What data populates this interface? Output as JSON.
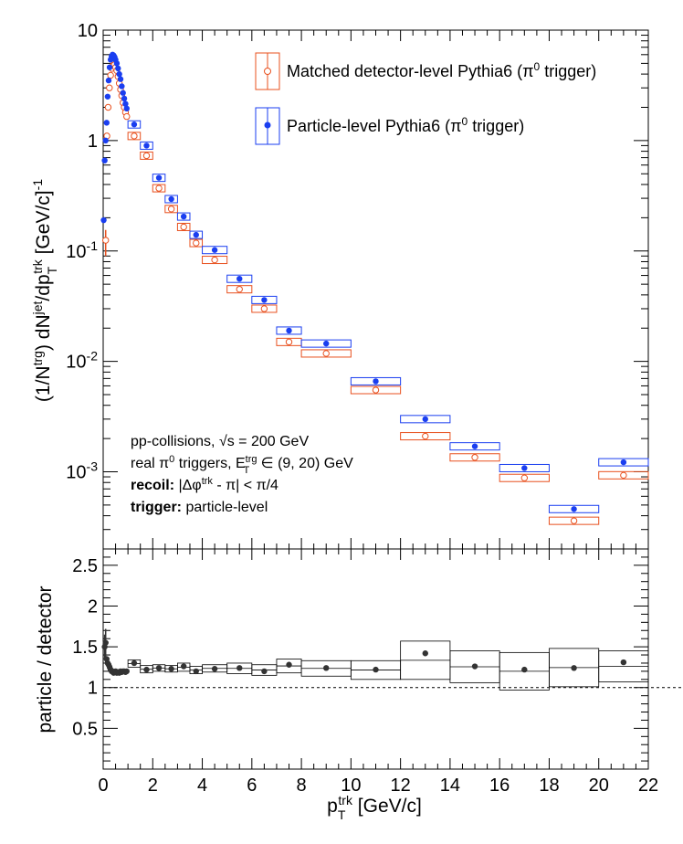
{
  "chart_data": [
    {
      "type": "scatter",
      "panel": "top",
      "yscale": "log",
      "xlim": [
        0,
        22
      ],
      "ylim": [
        0.0002,
        10
      ],
      "y_ticks": [
        0.001,
        0.01,
        0.1,
        1,
        10
      ],
      "y_tick_labels": [
        {
          "base": "10",
          "exp": "-3"
        },
        {
          "base": "10",
          "exp": "-2"
        },
        {
          "base": "10",
          "exp": "-1"
        },
        {
          "base": "1",
          "exp": ""
        },
        {
          "base": "10",
          "exp": ""
        }
      ],
      "ylabel": {
        "p1": "(1/N",
        "s1": "trg",
        "p2": ") dN",
        "s2": "jet",
        "p3": "/dp",
        "sub": "T",
        "s3": "trk",
        "p4": " [GeV/c]",
        "s4": "-1"
      },
      "legend_position": "top-right",
      "legend": [
        {
          "prefix": "Matched detector-level Pythia6 (π",
          "sup": "0",
          "suffix": " trigger)",
          "series": "detector"
        },
        {
          "prefix": "Particle-level Pythia6 (π",
          "sup": "0",
          "suffix": " trigger)",
          "series": "particle"
        }
      ],
      "annotations": {
        "line1_prefix": "pp-collisions, ",
        "line1_sqrt": "√s",
        "line1_suffix": " = 200 GeV",
        "line2_prefix": "real π",
        "line2_sup0": "0",
        "line2_mid": " triggers, E",
        "line2_sup": "trg",
        "line2_sub": "T",
        "line2_suffix": " ∈ (9, 20) GeV",
        "line3_bold": "recoil:",
        "line3_prefix": " |Δφ",
        "line3_sup": "trk",
        "line3_suffix": " - π| < π/4",
        "line4_bold": "trigger:",
        "line4_text": " particle-level"
      },
      "series": [
        {
          "name": "detector",
          "color": "#e8501e",
          "marker": "open-circle",
          "points": [
            {
              "x": 0.1,
              "y": 0.125,
              "ylo": 0.09,
              "yhi": 0.155
            },
            {
              "x": 0.15,
              "y": 1.1
            },
            {
              "x": 0.2,
              "y": 2.0
            },
            {
              "x": 0.25,
              "y": 3.0
            },
            {
              "x": 0.3,
              "y": 3.9
            },
            {
              "x": 0.35,
              "y": 4.5
            },
            {
              "x": 0.4,
              "y": 4.8
            },
            {
              "x": 0.45,
              "y": 4.85
            },
            {
              "x": 0.5,
              "y": 4.6
            },
            {
              "x": 0.55,
              "y": 4.3
            },
            {
              "x": 0.6,
              "y": 3.8
            },
            {
              "x": 0.65,
              "y": 3.3
            },
            {
              "x": 0.7,
              "y": 2.9
            },
            {
              "x": 0.75,
              "y": 2.55
            },
            {
              "x": 0.8,
              "y": 2.2
            },
            {
              "x": 0.85,
              "y": 2.0
            },
            {
              "x": 0.9,
              "y": 1.8
            },
            {
              "x": 0.95,
              "y": 1.65
            },
            {
              "x": 1.25,
              "y": 1.1,
              "xlo": 1.0,
              "xhi": 1.5
            },
            {
              "x": 1.75,
              "y": 0.73,
              "xlo": 1.5,
              "xhi": 2.0
            },
            {
              "x": 2.25,
              "y": 0.37,
              "xlo": 2.0,
              "xhi": 2.5
            },
            {
              "x": 2.75,
              "y": 0.24,
              "xlo": 2.5,
              "xhi": 3.0
            },
            {
              "x": 3.25,
              "y": 0.165,
              "xlo": 3.0,
              "xhi": 3.5
            },
            {
              "x": 3.75,
              "y": 0.118,
              "xlo": 3.5,
              "xhi": 4.0
            },
            {
              "x": 4.5,
              "y": 0.083,
              "xlo": 4.0,
              "xhi": 5.0
            },
            {
              "x": 5.5,
              "y": 0.045,
              "xlo": 5.0,
              "xhi": 6.0
            },
            {
              "x": 6.5,
              "y": 0.03,
              "xlo": 6.0,
              "xhi": 7.0
            },
            {
              "x": 7.5,
              "y": 0.015,
              "xlo": 7.0,
              "xhi": 8.0
            },
            {
              "x": 9.0,
              "y": 0.0118,
              "xlo": 8.0,
              "xhi": 10.0
            },
            {
              "x": 11.0,
              "y": 0.0055,
              "xlo": 10.0,
              "xhi": 12.0
            },
            {
              "x": 13.0,
              "y": 0.0021,
              "xlo": 12.0,
              "xhi": 14.0
            },
            {
              "x": 15.0,
              "y": 0.00135,
              "xlo": 14.0,
              "xhi": 16.0
            },
            {
              "x": 17.0,
              "y": 0.00088,
              "xlo": 16.0,
              "xhi": 18.0
            },
            {
              "x": 19.0,
              "y": 0.00036,
              "xlo": 18.0,
              "xhi": 20.0
            },
            {
              "x": 21.0,
              "y": 0.00093,
              "xlo": 20.0,
              "xhi": 22.0
            }
          ]
        },
        {
          "name": "particle",
          "color": "#1a3ef0",
          "marker": "filled-circle",
          "points": [
            {
              "x": 0.02,
              "y": 0.19
            },
            {
              "x": 0.06,
              "y": 0.66
            },
            {
              "x": 0.1,
              "y": 1.0
            },
            {
              "x": 0.14,
              "y": 1.45
            },
            {
              "x": 0.18,
              "y": 2.5
            },
            {
              "x": 0.22,
              "y": 3.5
            },
            {
              "x": 0.26,
              "y": 4.6
            },
            {
              "x": 0.3,
              "y": 5.4
            },
            {
              "x": 0.34,
              "y": 5.8
            },
            {
              "x": 0.38,
              "y": 6.0
            },
            {
              "x": 0.42,
              "y": 5.9
            },
            {
              "x": 0.46,
              "y": 5.7
            },
            {
              "x": 0.5,
              "y": 5.4
            },
            {
              "x": 0.55,
              "y": 5.0
            },
            {
              "x": 0.6,
              "y": 4.5
            },
            {
              "x": 0.65,
              "y": 4.0
            },
            {
              "x": 0.7,
              "y": 3.6
            },
            {
              "x": 0.75,
              "y": 3.1
            },
            {
              "x": 0.8,
              "y": 2.7
            },
            {
              "x": 0.85,
              "y": 2.4
            },
            {
              "x": 0.9,
              "y": 2.15
            },
            {
              "x": 0.95,
              "y": 1.95
            },
            {
              "x": 1.25,
              "y": 1.4,
              "xlo": 1.0,
              "xhi": 1.5
            },
            {
              "x": 1.75,
              "y": 0.9,
              "xlo": 1.5,
              "xhi": 2.0
            },
            {
              "x": 2.25,
              "y": 0.46,
              "xlo": 2.0,
              "xhi": 2.5
            },
            {
              "x": 2.75,
              "y": 0.295,
              "xlo": 2.5,
              "xhi": 3.0
            },
            {
              "x": 3.25,
              "y": 0.205,
              "xlo": 3.0,
              "xhi": 3.5
            },
            {
              "x": 3.75,
              "y": 0.14,
              "xlo": 3.5,
              "xhi": 4.0
            },
            {
              "x": 4.5,
              "y": 0.102,
              "xlo": 4.0,
              "xhi": 5.0
            },
            {
              "x": 5.5,
              "y": 0.056,
              "xlo": 5.0,
              "xhi": 6.0
            },
            {
              "x": 6.5,
              "y": 0.036,
              "xlo": 6.0,
              "xhi": 7.0
            },
            {
              "x": 7.5,
              "y": 0.019,
              "xlo": 7.0,
              "xhi": 8.0
            },
            {
              "x": 9.0,
              "y": 0.0145,
              "xlo": 8.0,
              "xhi": 10.0
            },
            {
              "x": 11.0,
              "y": 0.0066,
              "xlo": 10.0,
              "xhi": 12.0
            },
            {
              "x": 13.0,
              "y": 0.003,
              "xlo": 12.0,
              "xhi": 14.0
            },
            {
              "x": 15.0,
              "y": 0.0017,
              "xlo": 14.0,
              "xhi": 16.0
            },
            {
              "x": 17.0,
              "y": 0.00108,
              "xlo": 16.0,
              "xhi": 18.0
            },
            {
              "x": 19.0,
              "y": 0.00046,
              "xlo": 18.0,
              "xhi": 20.0
            },
            {
              "x": 21.0,
              "y": 0.00122,
              "xlo": 20.0,
              "xhi": 22.0
            }
          ]
        }
      ]
    },
    {
      "type": "scatter",
      "panel": "bottom",
      "xlim": [
        0,
        22
      ],
      "ylim": [
        0,
        2.7
      ],
      "x_ticks": [
        0,
        2,
        4,
        6,
        8,
        10,
        12,
        14,
        16,
        18,
        20,
        22
      ],
      "y_ticks": [
        0.5,
        1,
        1.5,
        2,
        2.5
      ],
      "y_tick_labels": [
        "0.5",
        "1",
        "1.5",
        "2",
        "2.5"
      ],
      "x_tick_labels": [
        "0",
        "2",
        "4",
        "6",
        "8",
        "10",
        "12",
        "14",
        "16",
        "18",
        "20",
        "22"
      ],
      "ylabel": "particle / detector",
      "xlabel": {
        "p1": "p",
        "sub": "T",
        "sup": "trk",
        "p2": " [GeV/c]"
      },
      "reference_line": 1,
      "series": [
        {
          "name": "ratio",
          "color": "#333333",
          "marker": "filled-circle",
          "points": [
            {
              "x": 0.06,
              "y": 1.5,
              "ylo": 1.35,
              "yhi": 1.65
            },
            {
              "x": 0.1,
              "y": 1.55,
              "ylo": 1.3,
              "yhi": 1.72
            },
            {
              "x": 0.14,
              "y": 1.35
            },
            {
              "x": 0.18,
              "y": 1.3
            },
            {
              "x": 0.22,
              "y": 1.28
            },
            {
              "x": 0.26,
              "y": 1.25
            },
            {
              "x": 0.3,
              "y": 1.22
            },
            {
              "x": 0.34,
              "y": 1.2
            },
            {
              "x": 0.38,
              "y": 1.2
            },
            {
              "x": 0.42,
              "y": 1.18
            },
            {
              "x": 0.46,
              "y": 1.19
            },
            {
              "x": 0.5,
              "y": 1.2
            },
            {
              "x": 0.55,
              "y": 1.18
            },
            {
              "x": 0.6,
              "y": 1.19
            },
            {
              "x": 0.65,
              "y": 1.18
            },
            {
              "x": 0.7,
              "y": 1.2
            },
            {
              "x": 0.75,
              "y": 1.19
            },
            {
              "x": 0.8,
              "y": 1.2
            },
            {
              "x": 0.85,
              "y": 1.2
            },
            {
              "x": 0.9,
              "y": 1.19
            },
            {
              "x": 0.95,
              "y": 1.2
            },
            {
              "x": 1.25,
              "y": 1.3,
              "xlo": 1.0,
              "xhi": 1.5,
              "blo": 1.25,
              "bhi": 1.34
            },
            {
              "x": 1.75,
              "y": 1.22,
              "xlo": 1.5,
              "xhi": 2.0,
              "blo": 1.18,
              "bhi": 1.27
            },
            {
              "x": 2.25,
              "y": 1.24,
              "xlo": 2.0,
              "xhi": 2.5,
              "blo": 1.2,
              "bhi": 1.28
            },
            {
              "x": 2.75,
              "y": 1.23,
              "xlo": 2.5,
              "xhi": 3.0,
              "blo": 1.19,
              "bhi": 1.27
            },
            {
              "x": 3.25,
              "y": 1.26,
              "xlo": 3.0,
              "xhi": 3.5,
              "blo": 1.2,
              "bhi": 1.3
            },
            {
              "x": 3.75,
              "y": 1.2,
              "xlo": 3.5,
              "xhi": 4.0,
              "blo": 1.17,
              "bhi": 1.26
            },
            {
              "x": 4.5,
              "y": 1.23,
              "xlo": 4.0,
              "xhi": 5.0,
              "blo": 1.19,
              "bhi": 1.28
            },
            {
              "x": 5.5,
              "y": 1.24,
              "xlo": 5.0,
              "xhi": 6.0,
              "blo": 1.17,
              "bhi": 1.3
            },
            {
              "x": 6.5,
              "y": 1.2,
              "xlo": 6.0,
              "xhi": 7.0,
              "blo": 1.15,
              "bhi": 1.28
            },
            {
              "x": 7.5,
              "y": 1.28,
              "xlo": 7.0,
              "xhi": 8.0,
              "blo": 1.18,
              "bhi": 1.35
            },
            {
              "x": 9.0,
              "y": 1.24,
              "xlo": 8.0,
              "xhi": 10.0,
              "blo": 1.14,
              "bhi": 1.33
            },
            {
              "x": 11.0,
              "y": 1.22,
              "xlo": 10.0,
              "xhi": 12.0,
              "blo": 1.1,
              "bhi": 1.33
            },
            {
              "x": 13.0,
              "y": 1.42,
              "xlo": 12.0,
              "xhi": 14.0,
              "blo": 1.1,
              "bhi": 1.57
            },
            {
              "x": 15.0,
              "y": 1.26,
              "xlo": 14.0,
              "xhi": 16.0,
              "blo": 1.06,
              "bhi": 1.45
            },
            {
              "x": 17.0,
              "y": 1.22,
              "xlo": 16.0,
              "xhi": 18.0,
              "blo": 0.97,
              "bhi": 1.43
            },
            {
              "x": 19.0,
              "y": 1.24,
              "xlo": 18.0,
              "xhi": 20.0,
              "blo": 1.01,
              "bhi": 1.48
            },
            {
              "x": 21.0,
              "y": 1.31,
              "xlo": 20.0,
              "xhi": 22.0,
              "blo": 1.07,
              "bhi": 1.45
            }
          ]
        }
      ]
    }
  ]
}
